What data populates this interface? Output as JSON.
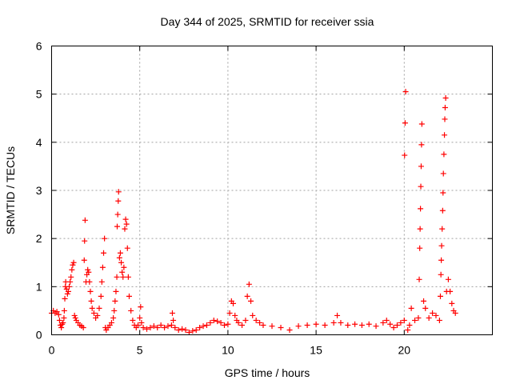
{
  "chart_data": {
    "type": "scatter",
    "title": "Day 344 of 2025, SRMTID for receiver ssia",
    "xlabel": "GPS time / hours",
    "ylabel": "SRMTID / TECUs",
    "xlim": [
      0,
      25
    ],
    "ylim": [
      0,
      6
    ],
    "xticks": [
      0,
      5,
      10,
      15,
      20
    ],
    "xtick_labels": [
      "0",
      "5",
      "10",
      "15",
      "20"
    ],
    "yticks": [
      0,
      1,
      2,
      3,
      4,
      5,
      6
    ],
    "ytick_labels": [
      "0",
      "1",
      "2",
      "3",
      "4",
      "5",
      "6"
    ],
    "grid": true,
    "marker": "plus",
    "series": [
      {
        "name": "ssia",
        "color": "#ff0000",
        "points": [
          [
            0.0,
            0.45
          ],
          [
            0.1,
            0.5
          ],
          [
            0.2,
            0.45
          ],
          [
            0.3,
            0.48
          ],
          [
            0.4,
            0.42
          ],
          [
            0.45,
            0.3
          ],
          [
            0.5,
            0.2
          ],
          [
            0.55,
            0.15
          ],
          [
            0.6,
            0.22
          ],
          [
            0.65,
            0.25
          ],
          [
            0.7,
            0.35
          ],
          [
            0.72,
            0.5
          ],
          [
            0.75,
            0.75
          ],
          [
            0.78,
            1.0
          ],
          [
            0.8,
            1.1
          ],
          [
            0.85,
            0.95
          ],
          [
            0.9,
            0.85
          ],
          [
            0.95,
            0.9
          ],
          [
            1.0,
            1.0
          ],
          [
            1.05,
            1.1
          ],
          [
            1.1,
            1.2
          ],
          [
            1.15,
            1.35
          ],
          [
            1.2,
            1.45
          ],
          [
            1.25,
            1.5
          ],
          [
            1.3,
            0.4
          ],
          [
            1.35,
            0.35
          ],
          [
            1.4,
            0.3
          ],
          [
            1.5,
            0.25
          ],
          [
            1.6,
            0.2
          ],
          [
            1.7,
            0.18
          ],
          [
            1.8,
            0.15
          ],
          [
            1.85,
            1.55
          ],
          [
            1.87,
            1.95
          ],
          [
            1.9,
            2.38
          ],
          [
            1.95,
            1.1
          ],
          [
            2.0,
            1.25
          ],
          [
            2.05,
            1.35
          ],
          [
            2.1,
            1.3
          ],
          [
            2.15,
            1.1
          ],
          [
            2.2,
            0.9
          ],
          [
            2.25,
            0.7
          ],
          [
            2.3,
            0.55
          ],
          [
            2.4,
            0.45
          ],
          [
            2.5,
            0.35
          ],
          [
            2.6,
            0.4
          ],
          [
            2.7,
            0.55
          ],
          [
            2.8,
            0.8
          ],
          [
            2.85,
            1.1
          ],
          [
            2.9,
            1.4
          ],
          [
            2.95,
            1.7
          ],
          [
            3.0,
            2.0
          ],
          [
            3.05,
            0.15
          ],
          [
            3.1,
            0.1
          ],
          [
            3.2,
            0.15
          ],
          [
            3.3,
            0.2
          ],
          [
            3.4,
            0.25
          ],
          [
            3.5,
            0.35
          ],
          [
            3.55,
            0.5
          ],
          [
            3.6,
            0.7
          ],
          [
            3.65,
            0.9
          ],
          [
            3.7,
            1.2
          ],
          [
            3.72,
            2.25
          ],
          [
            3.75,
            2.5
          ],
          [
            3.78,
            2.78
          ],
          [
            3.8,
            2.97
          ],
          [
            3.85,
            1.6
          ],
          [
            3.9,
            1.7
          ],
          [
            3.95,
            1.5
          ],
          [
            4.0,
            1.3
          ],
          [
            4.05,
            1.2
          ],
          [
            4.1,
            1.4
          ],
          [
            4.15,
            2.2
          ],
          [
            4.2,
            2.4
          ],
          [
            4.25,
            2.3
          ],
          [
            4.3,
            1.8
          ],
          [
            4.35,
            1.2
          ],
          [
            4.4,
            0.8
          ],
          [
            4.5,
            0.5
          ],
          [
            4.6,
            0.3
          ],
          [
            4.7,
            0.2
          ],
          [
            4.8,
            0.15
          ],
          [
            4.9,
            0.2
          ],
          [
            5.0,
            0.35
          ],
          [
            5.05,
            0.58
          ],
          [
            5.1,
            0.25
          ],
          [
            5.2,
            0.15
          ],
          [
            5.4,
            0.12
          ],
          [
            5.6,
            0.15
          ],
          [
            5.8,
            0.18
          ],
          [
            6.0,
            0.15
          ],
          [
            6.2,
            0.2
          ],
          [
            6.4,
            0.15
          ],
          [
            6.6,
            0.18
          ],
          [
            6.8,
            0.2
          ],
          [
            6.85,
            0.45
          ],
          [
            6.9,
            0.3
          ],
          [
            7.0,
            0.15
          ],
          [
            7.2,
            0.1
          ],
          [
            7.4,
            0.12
          ],
          [
            7.6,
            0.1
          ],
          [
            7.8,
            0.05
          ],
          [
            8.0,
            0.08
          ],
          [
            8.2,
            0.1
          ],
          [
            8.4,
            0.15
          ],
          [
            8.6,
            0.18
          ],
          [
            8.8,
            0.2
          ],
          [
            9.0,
            0.25
          ],
          [
            9.2,
            0.3
          ],
          [
            9.4,
            0.28
          ],
          [
            9.6,
            0.25
          ],
          [
            9.8,
            0.2
          ],
          [
            10.0,
            0.22
          ],
          [
            10.1,
            0.45
          ],
          [
            10.2,
            0.7
          ],
          [
            10.3,
            0.65
          ],
          [
            10.4,
            0.4
          ],
          [
            10.5,
            0.3
          ],
          [
            10.6,
            0.25
          ],
          [
            10.8,
            0.2
          ],
          [
            11.0,
            0.3
          ],
          [
            11.1,
            0.8
          ],
          [
            11.2,
            1.05
          ],
          [
            11.3,
            0.7
          ],
          [
            11.4,
            0.4
          ],
          [
            11.6,
            0.3
          ],
          [
            11.8,
            0.25
          ],
          [
            12.0,
            0.2
          ],
          [
            12.5,
            0.18
          ],
          [
            13.0,
            0.15
          ],
          [
            13.5,
            0.1
          ],
          [
            14.0,
            0.18
          ],
          [
            14.5,
            0.2
          ],
          [
            15.0,
            0.22
          ],
          [
            15.5,
            0.2
          ],
          [
            16.0,
            0.25
          ],
          [
            16.2,
            0.4
          ],
          [
            16.4,
            0.25
          ],
          [
            16.8,
            0.2
          ],
          [
            17.2,
            0.22
          ],
          [
            17.6,
            0.2
          ],
          [
            18.0,
            0.22
          ],
          [
            18.4,
            0.18
          ],
          [
            18.8,
            0.25
          ],
          [
            19.0,
            0.3
          ],
          [
            19.2,
            0.22
          ],
          [
            19.4,
            0.15
          ],
          [
            19.6,
            0.2
          ],
          [
            19.8,
            0.25
          ],
          [
            20.0,
            0.3
          ],
          [
            20.02,
            3.73
          ],
          [
            20.05,
            4.4
          ],
          [
            20.08,
            5.05
          ],
          [
            20.2,
            0.1
          ],
          [
            20.3,
            0.2
          ],
          [
            20.4,
            0.55
          ],
          [
            20.6,
            0.3
          ],
          [
            20.8,
            0.35
          ],
          [
            20.85,
            1.15
          ],
          [
            20.88,
            1.8
          ],
          [
            20.9,
            2.2
          ],
          [
            20.92,
            2.62
          ],
          [
            20.94,
            3.08
          ],
          [
            20.96,
            3.5
          ],
          [
            20.98,
            3.95
          ],
          [
            21.0,
            4.38
          ],
          [
            21.1,
            0.7
          ],
          [
            21.2,
            0.55
          ],
          [
            21.4,
            0.35
          ],
          [
            21.6,
            0.45
          ],
          [
            21.8,
            0.4
          ],
          [
            22.0,
            0.3
          ],
          [
            22.05,
            0.8
          ],
          [
            22.08,
            1.25
          ],
          [
            22.1,
            1.55
          ],
          [
            22.12,
            1.85
          ],
          [
            22.15,
            2.2
          ],
          [
            22.18,
            2.58
          ],
          [
            22.2,
            2.95
          ],
          [
            22.22,
            3.35
          ],
          [
            22.25,
            3.75
          ],
          [
            22.28,
            4.15
          ],
          [
            22.3,
            4.48
          ],
          [
            22.32,
            4.72
          ],
          [
            22.35,
            4.92
          ],
          [
            22.4,
            0.9
          ],
          [
            22.5,
            1.15
          ],
          [
            22.6,
            0.9
          ],
          [
            22.7,
            0.65
          ],
          [
            22.8,
            0.5
          ],
          [
            22.9,
            0.45
          ]
        ]
      }
    ]
  }
}
